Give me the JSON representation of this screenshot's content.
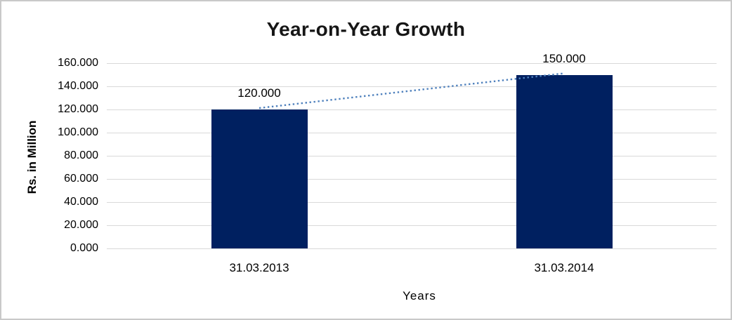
{
  "chart_data": {
    "type": "bar",
    "title": "Year-on-Year Growth",
    "xlabel": "Years",
    "ylabel": "Rs. in Million",
    "categories": [
      "31.03.2013",
      "31.03.2014"
    ],
    "values": [
      120.0,
      150.0
    ],
    "data_labels": [
      "120.000",
      "150.000"
    ],
    "y_ticks": [
      0,
      20,
      40,
      60,
      80,
      100,
      120,
      140,
      160
    ],
    "y_tick_labels": [
      "0.000",
      "20.000",
      "40.000",
      "60.000",
      "80.000",
      "100.000",
      "120.000",
      "140.000",
      "160.000"
    ],
    "ylim": [
      0,
      160
    ],
    "grid": true,
    "legend": "none",
    "colors": {
      "bar": "#002060",
      "trendline": "#4F81BD",
      "gridline": "#d9d9d9",
      "text": "#000000"
    },
    "trendline": {
      "style": "dotted",
      "connects": [
        "31.03.2013",
        "31.03.2014"
      ]
    }
  }
}
